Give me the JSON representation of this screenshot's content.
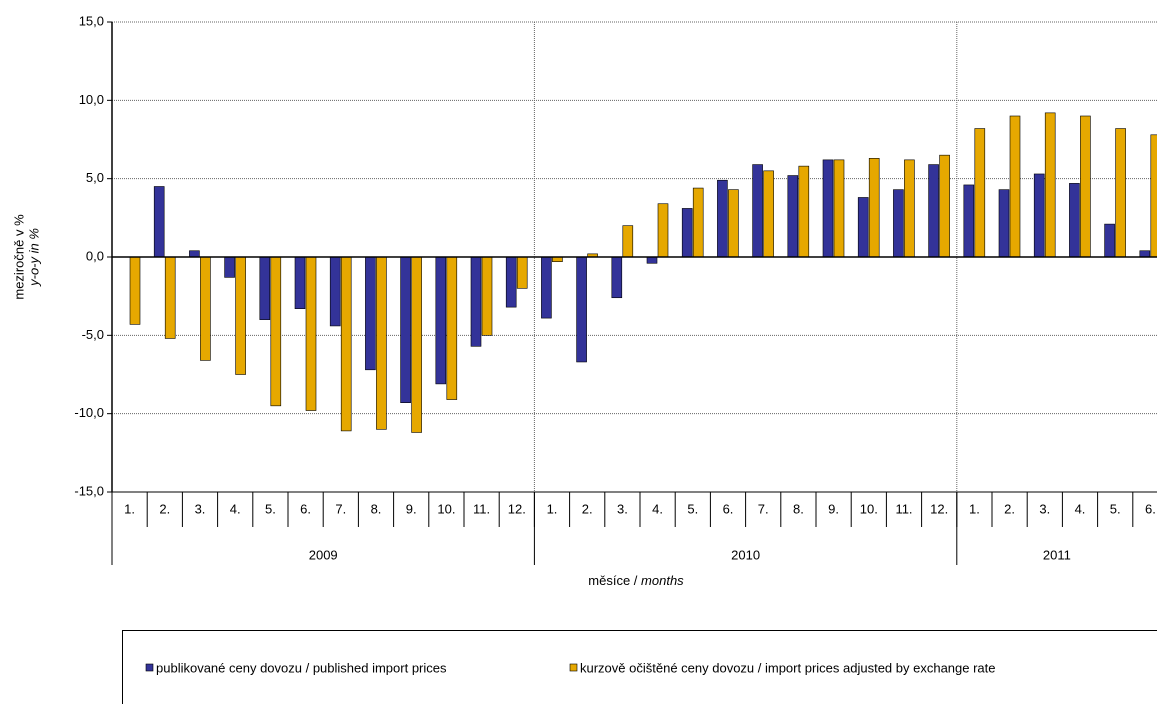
{
  "chart_data": {
    "type": "bar",
    "y_label": [
      "meziročně v %",
      "y-o-y in %"
    ],
    "x_label": [
      "měsíce / ",
      "months"
    ],
    "categories": [
      "1.",
      "2.",
      "3.",
      "4.",
      "5.",
      "6.",
      "7.",
      "8.",
      "9.",
      "10.",
      "11.",
      "12.",
      "1.",
      "2.",
      "3.",
      "4.",
      "5.",
      "6.",
      "7.",
      "8.",
      "9.",
      "10.",
      "11.",
      "12.",
      "1.",
      "2.",
      "3.",
      "4.",
      "5.",
      "6."
    ],
    "groups": [
      {
        "label": "2009",
        "count": 12
      },
      {
        "label": "2010",
        "count": 12
      },
      {
        "label": "2011",
        "count": 6
      }
    ],
    "series": [
      {
        "name": "publikované ceny dovozu / published import prices",
        "color": "#333399",
        "values": [
          null,
          4.5,
          0.4,
          -1.3,
          -4.0,
          -3.3,
          -4.4,
          -7.2,
          -9.3,
          -8.1,
          -5.7,
          -3.2,
          -3.9,
          -6.7,
          -2.6,
          -0.4,
          3.1,
          4.9,
          5.9,
          5.2,
          6.2,
          3.8,
          4.3,
          5.9,
          4.6,
          4.3,
          5.3,
          4.7,
          2.1,
          0.4
        ]
      },
      {
        "name": "kurzově očištěné ceny dovozu / import prices adjusted by exchange rate",
        "color": "#e6a800",
        "values": [
          -4.3,
          -5.2,
          -6.6,
          -7.5,
          -9.5,
          -9.8,
          -11.1,
          -11.0,
          -11.2,
          -9.1,
          -5.0,
          -2.0,
          -0.3,
          0.2,
          2.0,
          3.4,
          4.4,
          4.3,
          5.5,
          5.8,
          6.2,
          6.3,
          6.2,
          6.5,
          8.2,
          9.0,
          9.2,
          9.0,
          8.2,
          7.8
        ]
      }
    ],
    "ylim": [
      -15,
      15
    ],
    "yticks": [
      {
        "value": -15,
        "label": "-15,0"
      },
      {
        "value": -10,
        "label": "-10,0"
      },
      {
        "value": -5,
        "label": "-5,0"
      },
      {
        "value": 0,
        "label": "0,0"
      },
      {
        "value": 5,
        "label": "5,0"
      },
      {
        "value": 10,
        "label": "10,0"
      },
      {
        "value": 15,
        "label": "15,0"
      }
    ],
    "grid": true,
    "legend": "bottom"
  }
}
